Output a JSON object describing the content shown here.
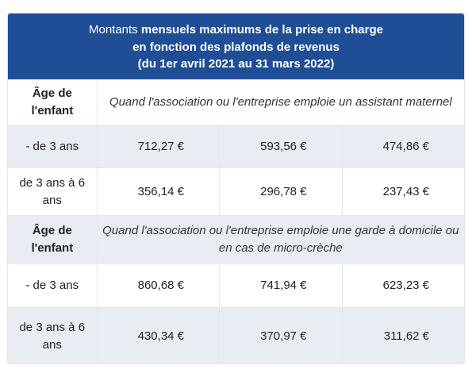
{
  "header": {
    "line1_normal": "Montants ",
    "line1_bold": "mensuels maximums de la prise en charge",
    "line2": "en fonction des plafonds de revenus",
    "line3": "(du 1er avril 2021 au 31 mars 2022)"
  },
  "colors": {
    "header_bg": "#1f4e97",
    "alt_row_bg": "#e8ecf3"
  },
  "sections": [
    {
      "label": "Âge de l'enfant",
      "description": "Quand l'association ou l'entreprise emploie un assistant maternel",
      "rows": [
        {
          "age": "- de 3 ans",
          "values": [
            "712,27 €",
            "593,56 €",
            "474,86 €"
          ]
        },
        {
          "age": "de 3 ans à 6 ans",
          "values": [
            "356,14 €",
            "296,78 €",
            "237,43 €"
          ]
        }
      ]
    },
    {
      "label": "Âge de l'enfant",
      "description": "Quand l'association ou l'entreprise emploie une garde à domicile ou en cas de micro-crèche",
      "rows": [
        {
          "age": "- de 3 ans",
          "values": [
            "860,68 €",
            "741,94 €",
            "623,23 €"
          ]
        },
        {
          "age": "de 3 ans à 6 ans",
          "values": [
            "430,34 €",
            "370,97 €",
            "311,62 €"
          ]
        }
      ]
    }
  ]
}
